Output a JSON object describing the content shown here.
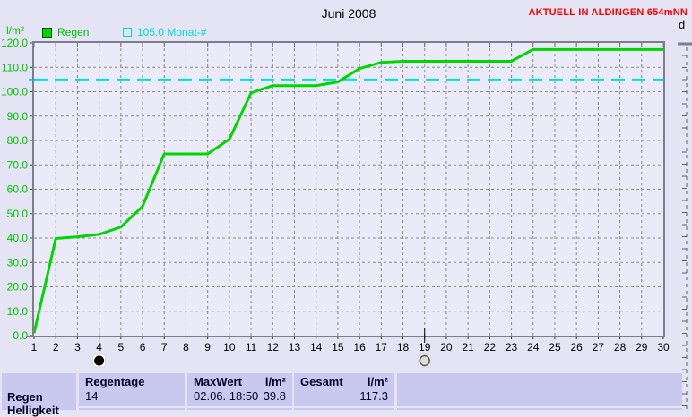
{
  "header": {
    "title": "Juni 2008",
    "status_text": "AKTUELL IN ALDINGEN 654mNN",
    "next_panel_label": "d"
  },
  "legend": {
    "y_unit": "l/m²",
    "rain_label": "Regen",
    "norm_label": "105.0 Monat-#"
  },
  "chart_data": {
    "type": "line",
    "title": "Juni 2008",
    "ylabel": "l/m²",
    "xlabel": "",
    "ylim": [
      0,
      120
    ],
    "ytick_step": 10,
    "ytick_labels": [
      "0.0",
      "10.0",
      "20.0",
      "30.0",
      "40.0",
      "50.0",
      "60.0",
      "70.0",
      "80.0",
      "90.0",
      "100.0",
      "110.0",
      "120.0"
    ],
    "x": [
      1,
      2,
      3,
      4,
      5,
      6,
      7,
      8,
      9,
      10,
      11,
      12,
      13,
      14,
      15,
      16,
      17,
      18,
      19,
      20,
      21,
      22,
      23,
      24,
      25,
      26,
      27,
      28,
      29,
      30
    ],
    "xtick_labels": [
      "1",
      "2",
      "3",
      "4",
      "5",
      "6",
      "7",
      "8",
      "9",
      "10",
      "11",
      "12",
      "13",
      "14",
      "15",
      "16",
      "17",
      "18",
      "19",
      "20",
      "21",
      "22",
      "23",
      "24",
      "25",
      "26",
      "27",
      "28",
      "29",
      "30"
    ],
    "grid": true,
    "legend_position": "top-left",
    "series": [
      {
        "name": "Regen",
        "color": "#00d600",
        "values": [
          1.0,
          39.8,
          40.5,
          41.5,
          44.5,
          53.0,
          74.5,
          74.5,
          74.5,
          80.5,
          99.5,
          102.5,
          102.5,
          102.5,
          104.0,
          109.5,
          112.0,
          112.5,
          112.5,
          112.5,
          112.5,
          112.5,
          112.5,
          117.3,
          117.3,
          117.3,
          117.3,
          117.3,
          117.3,
          117.3
        ]
      }
    ],
    "hline": {
      "value": 105.0,
      "label": "105.0 Monat-#",
      "color": "#00e0e0"
    },
    "moon_markers": [
      {
        "day": 4,
        "symbol": "new-moon"
      },
      {
        "day": 19,
        "symbol": "full-moon"
      }
    ],
    "ytick_text_color": "#00c400",
    "xtick_text_color": "#000000"
  },
  "table": {
    "row_label": "Regen",
    "next_row_label": "Helligkeit",
    "regentage": {
      "header": "Regentage",
      "value": "14"
    },
    "maxwert": {
      "header": "MaxWert",
      "unit": "l/m²",
      "datetime": "02.06.  18:50",
      "value": "39.8"
    },
    "gesamt": {
      "header": "Gesamt",
      "unit": "l/m²",
      "value": "117.3"
    }
  }
}
